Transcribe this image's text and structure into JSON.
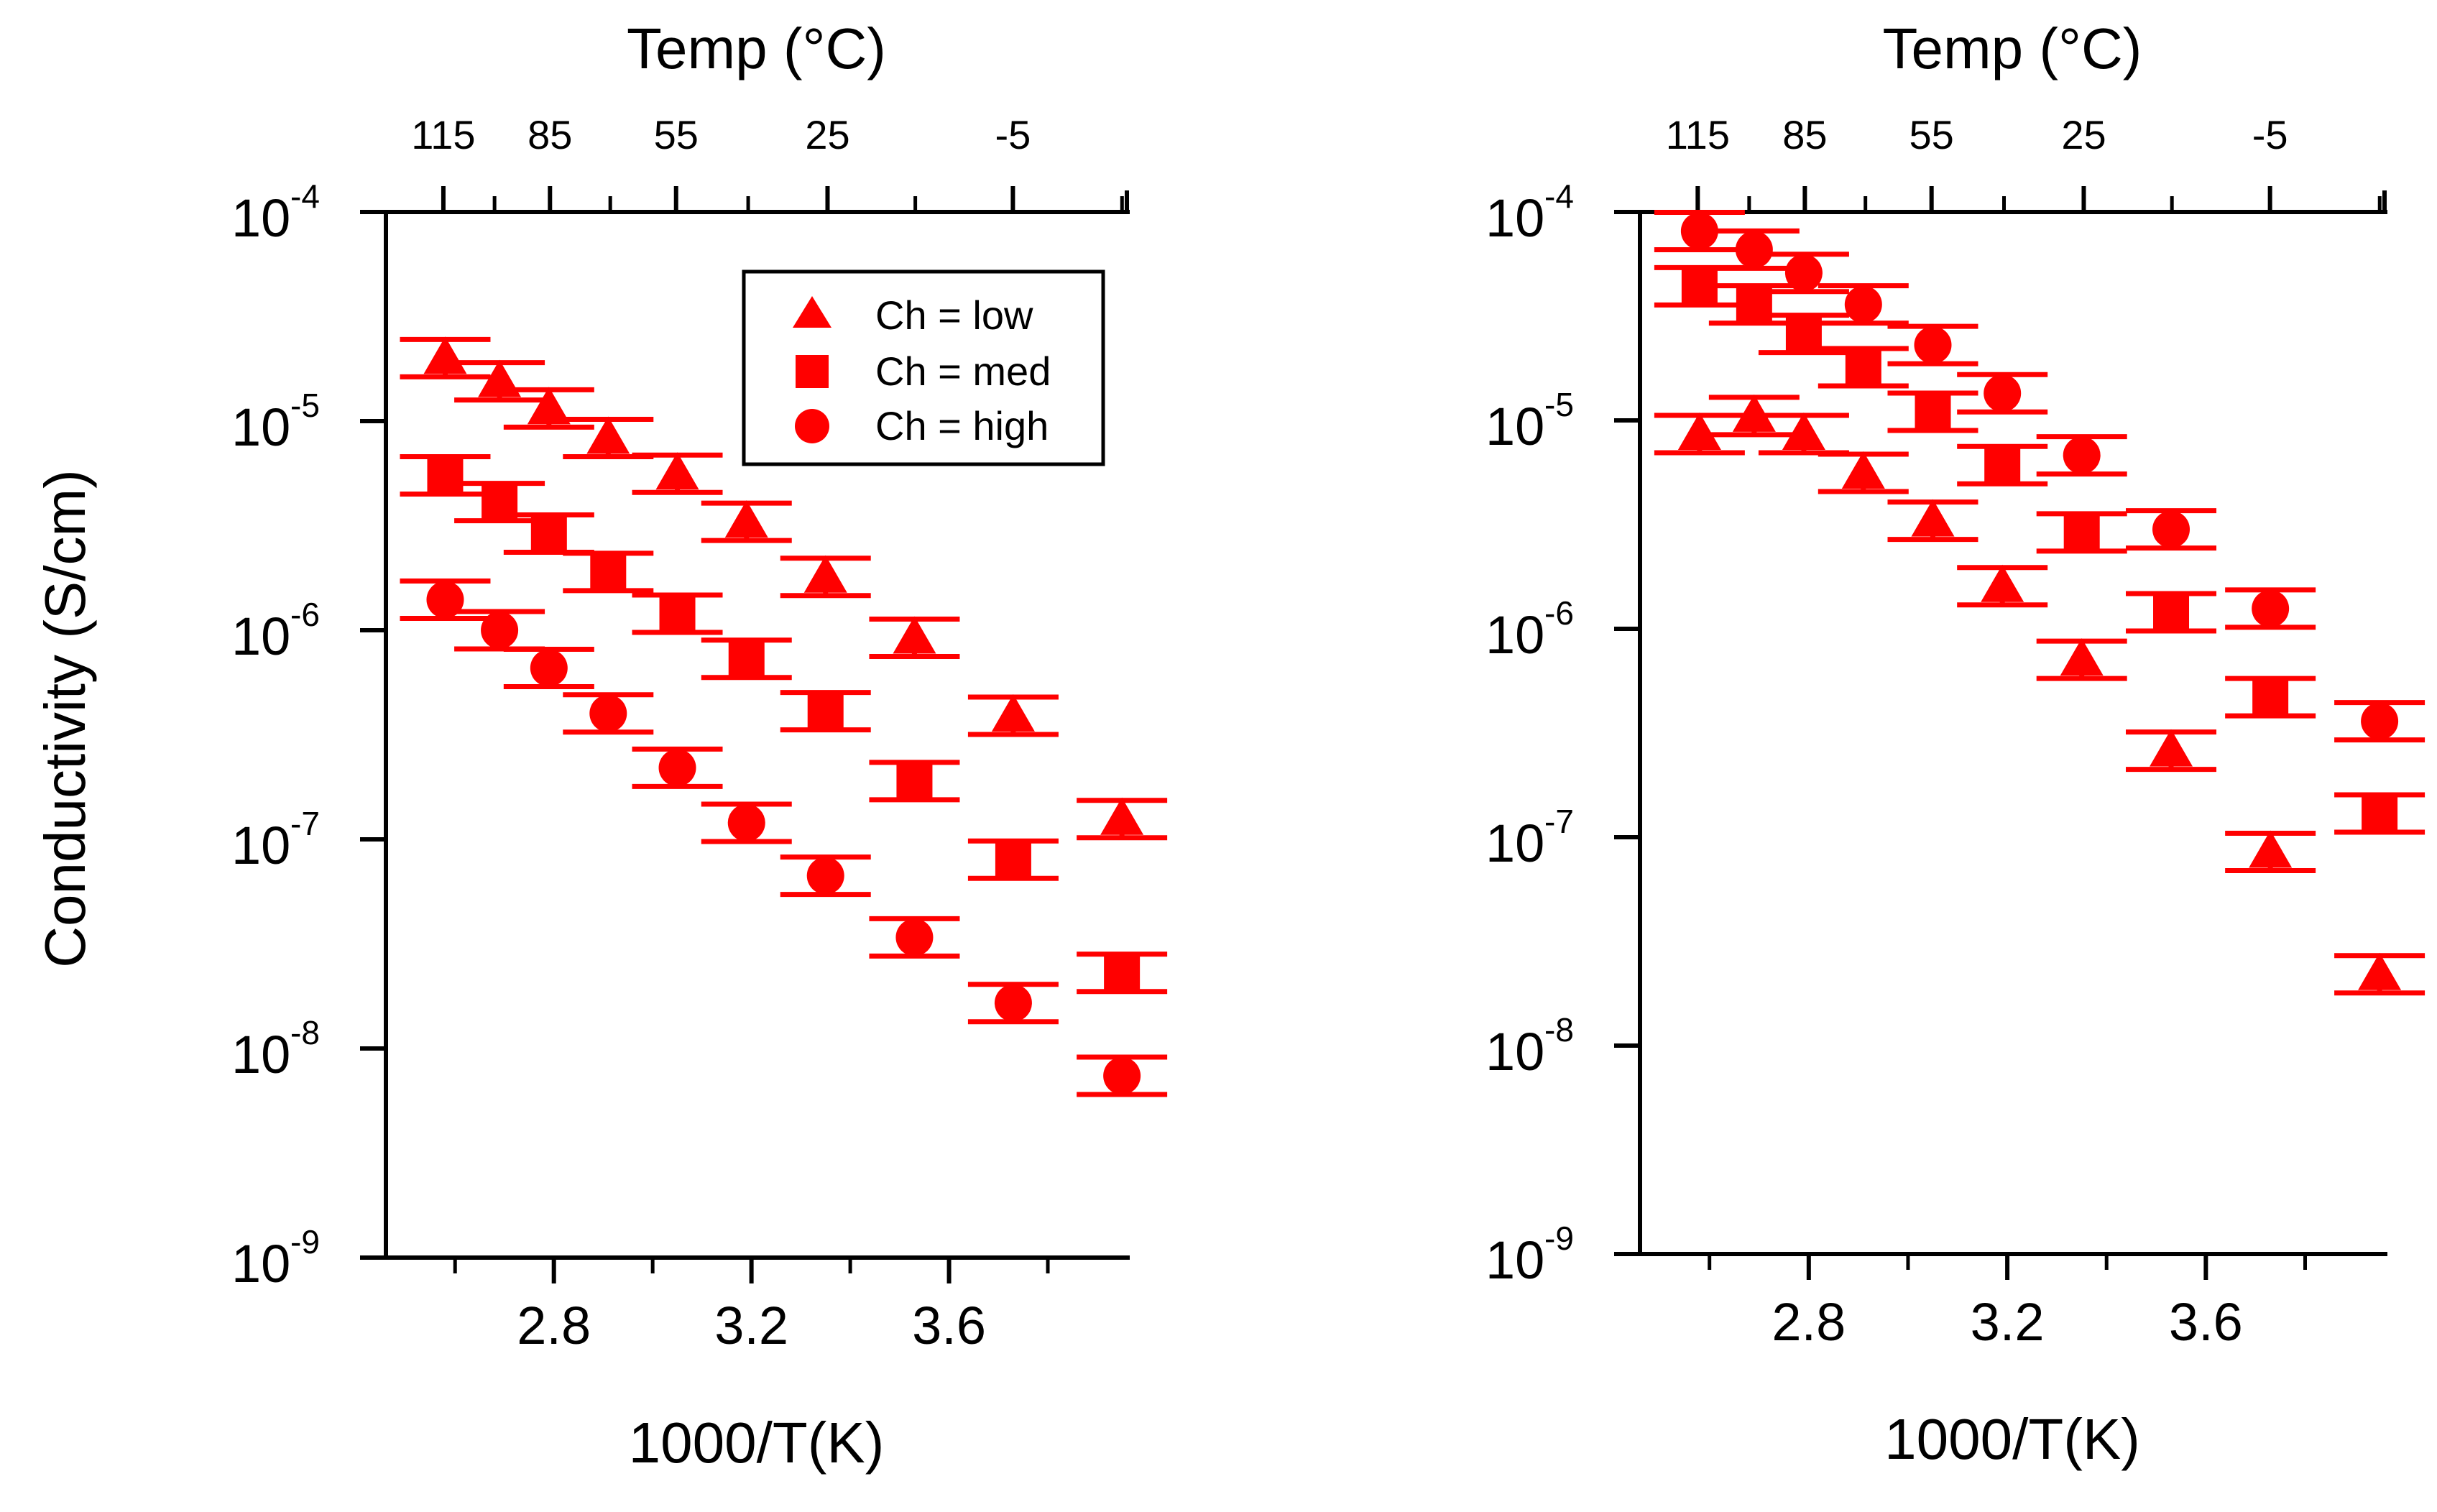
{
  "colors": {
    "marker": "#ff0000",
    "axis": "#000000",
    "background": "#ffffff"
  },
  "y_axis_label": "Conductivity (S/cm)",
  "legend": {
    "entries": [
      {
        "marker": "triangle",
        "label": "Ch = low"
      },
      {
        "marker": "square",
        "label": "Ch = med"
      },
      {
        "marker": "circle",
        "label": "Ch = high"
      }
    ]
  },
  "chart_data": [
    {
      "type": "scatter",
      "panel": "left",
      "xlabel": "1000/T(K)",
      "ylabel": "Conductivity (S/cm)",
      "x2label": "Temp (°C)",
      "xlim": [
        2.46,
        3.96
      ],
      "ylim_log10": [
        -9,
        -4
      ],
      "x_ticks": [
        {
          "label": "2.8",
          "value": 2.8
        },
        {
          "label": "3.2",
          "value": 3.2
        },
        {
          "label": "3.6",
          "value": 3.6
        }
      ],
      "x_minor_ticks": [
        2.6,
        3.0,
        3.4,
        3.8
      ],
      "top_ticks": [
        {
          "label": "115",
          "value": 115
        },
        {
          "label": "85",
          "value": 85
        },
        {
          "label": "55",
          "value": 55
        },
        {
          "label": "25",
          "value": 25
        },
        {
          "label": "-5",
          "value": -5
        }
      ],
      "top_minor_ticks": [
        100,
        70,
        40,
        10,
        -20
      ],
      "y_ticks": [
        {
          "base": "10",
          "exp": "-4",
          "value": -4
        },
        {
          "base": "10",
          "exp": "-5",
          "value": -5
        },
        {
          "base": "10",
          "exp": "-6",
          "value": -6
        },
        {
          "base": "10",
          "exp": "-7",
          "value": -7
        },
        {
          "base": "10",
          "exp": "-8",
          "value": -8
        },
        {
          "base": "10",
          "exp": "-9",
          "value": -9
        }
      ],
      "legend_shown": true,
      "series": [
        {
          "name": "Ch = low",
          "marker": "triangle",
          "x": [
            2.58,
            2.69,
            2.79,
            2.91,
            3.05,
            3.19,
            3.35,
            3.53,
            3.73,
            3.95
          ],
          "y": [
            2e-05,
            1.55e-05,
            1.15e-05,
            8.3e-06,
            5.6e-06,
            3.3e-06,
            1.8e-06,
            9.2e-07,
            3.9e-07,
            1.25e-07
          ]
        },
        {
          "name": "Ch = med",
          "marker": "square",
          "x": [
            2.58,
            2.69,
            2.79,
            2.91,
            3.05,
            3.19,
            3.35,
            3.53,
            3.73,
            3.95
          ],
          "y": [
            5.5e-06,
            4.1e-06,
            2.9e-06,
            1.9e-06,
            1.2e-06,
            7.3e-07,
            4.1e-07,
            1.9e-07,
            8e-08,
            2.3e-08
          ]
        },
        {
          "name": "Ch = high",
          "marker": "circle",
          "x": [
            2.58,
            2.69,
            2.79,
            2.91,
            3.05,
            3.19,
            3.35,
            3.53,
            3.73,
            3.95
          ],
          "y": [
            1.4e-06,
            1e-06,
            6.6e-07,
            4e-07,
            2.2e-07,
            1.2e-07,
            6.7e-08,
            3.4e-08,
            1.65e-08,
            7.4e-09
          ]
        }
      ]
    },
    {
      "type": "scatter",
      "panel": "right",
      "xlabel": "1000/T(K)",
      "ylabel": "Conductivity (S/cm)",
      "x2label": "Temp (°C)",
      "xlim": [
        2.46,
        3.96
      ],
      "ylim_log10": [
        -9,
        -4
      ],
      "x_ticks": [
        {
          "label": "2.8",
          "value": 2.8
        },
        {
          "label": "3.2",
          "value": 3.2
        },
        {
          "label": "3.6",
          "value": 3.6
        }
      ],
      "x_minor_ticks": [
        2.6,
        3.0,
        3.4,
        3.8
      ],
      "top_ticks": [
        {
          "label": "115",
          "value": 115
        },
        {
          "label": "85",
          "value": 85
        },
        {
          "label": "55",
          "value": 55
        },
        {
          "label": "25",
          "value": 25
        },
        {
          "label": "-5",
          "value": -5
        }
      ],
      "top_minor_ticks": [
        100,
        70,
        40,
        10,
        -20
      ],
      "y_ticks": [
        {
          "base": "10",
          "exp": "-4",
          "value": -4
        },
        {
          "base": "10",
          "exp": "-5",
          "value": -5
        },
        {
          "base": "10",
          "exp": "-6",
          "value": -6
        },
        {
          "base": "10",
          "exp": "-7",
          "value": -7
        },
        {
          "base": "10",
          "exp": "-8",
          "value": -8
        },
        {
          "base": "10",
          "exp": "-9",
          "value": -9
        }
      ],
      "legend_shown": false,
      "series": [
        {
          "name": "Ch = low",
          "marker": "triangle",
          "x": [
            2.58,
            2.69,
            2.79,
            2.91,
            3.05,
            3.19,
            3.35,
            3.53,
            3.73,
            3.95
          ],
          "y": [
            8.6e-06,
            1.05e-05,
            8.6e-06,
            5.6e-06,
            3.3e-06,
            1.6e-06,
            7.1e-07,
            2.6e-07,
            8.5e-08,
            2.2e-08
          ]
        },
        {
          "name": "Ch = med",
          "marker": "square",
          "x": [
            2.58,
            2.69,
            2.79,
            2.91,
            3.05,
            3.19,
            3.35,
            3.53,
            3.73,
            3.95
          ],
          "y": [
            4.4e-05,
            3.6e-05,
            2.6e-05,
            1.8e-05,
            1.1e-05,
            6.1e-06,
            2.9e-06,
            1.2e-06,
            4.7e-07,
            1.3e-07
          ]
        },
        {
          "name": "Ch = high",
          "marker": "circle",
          "x": [
            2.58,
            2.69,
            2.79,
            2.91,
            3.05,
            3.19,
            3.35,
            3.53,
            3.73,
            3.95
          ],
          "y": [
            8.1e-05,
            6.6e-05,
            5.1e-05,
            3.6e-05,
            2.3e-05,
            1.35e-05,
            6.8e-06,
            3e-06,
            1.25e-06,
            3.6e-07
          ]
        }
      ]
    }
  ]
}
